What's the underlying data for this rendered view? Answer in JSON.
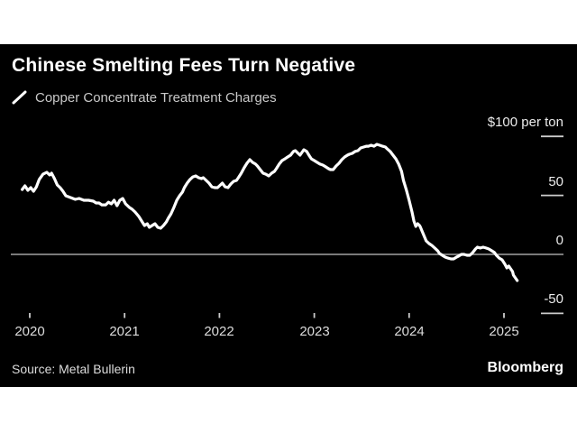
{
  "header": {
    "title": "Chinese Smelting Fees Turn Negative"
  },
  "footer": {
    "source": "Source: Metal Bullerin",
    "brand": "Bloomberg"
  },
  "colors": {
    "background": "#ffffff",
    "panel": "#000000",
    "line": "#ffffff",
    "zero_line": "#a3a3a3",
    "tick": "#cccccc",
    "title_text": "#ffffff",
    "dim_text": "#c9c9c9"
  },
  "chart_data": {
    "type": "line",
    "title": "Chinese Smelting Fees Turn Negative",
    "unit_label": "$100 per ton",
    "source": "Metal Bullerin",
    "legend_position": "top-left",
    "grid": false,
    "zero_line": true,
    "xlim": [
      2019.85,
      2025.63
    ],
    "ylim": [
      -55,
      105
    ],
    "x_ticks": [
      2020,
      2021,
      2022,
      2023,
      2024,
      2025
    ],
    "x_tick_labels": [
      "2020",
      "2021",
      "2022",
      "2023",
      "2024",
      "2025"
    ],
    "y_ticks": [
      100,
      50,
      0,
      -50
    ],
    "y_tick_labels": [
      "$100 per ton",
      "50",
      "0",
      "-50"
    ],
    "series": [
      {
        "name": "Copper Concentrate Treatment Charges",
        "unit": "$ per ton",
        "points": [
          [
            2019.92,
            55.0
          ],
          [
            2019.95,
            58.1
          ],
          [
            2019.98,
            54.3
          ],
          [
            2020.01,
            56.6
          ],
          [
            2020.04,
            53.5
          ],
          [
            2020.07,
            57.3
          ],
          [
            2020.1,
            63.5
          ],
          [
            2020.14,
            68.0
          ],
          [
            2020.18,
            69.6
          ],
          [
            2020.21,
            67.3
          ],
          [
            2020.23,
            68.8
          ],
          [
            2020.26,
            64.2
          ],
          [
            2020.29,
            58.9
          ],
          [
            2020.32,
            56.6
          ],
          [
            2020.35,
            53.5
          ],
          [
            2020.38,
            49.7
          ],
          [
            2020.43,
            48.2
          ],
          [
            2020.48,
            46.6
          ],
          [
            2020.52,
            47.4
          ],
          [
            2020.57,
            45.9
          ],
          [
            2020.62,
            45.9
          ],
          [
            2020.67,
            45.1
          ],
          [
            2020.7,
            43.6
          ],
          [
            2020.73,
            43.6
          ],
          [
            2020.76,
            42.0
          ],
          [
            2020.8,
            42.0
          ],
          [
            2020.83,
            44.3
          ],
          [
            2020.86,
            42.8
          ],
          [
            2020.89,
            45.9
          ],
          [
            2020.92,
            41.3
          ],
          [
            2020.95,
            45.9
          ],
          [
            2020.98,
            47.4
          ],
          [
            2021.01,
            42.8
          ],
          [
            2021.05,
            39.8
          ],
          [
            2021.08,
            38.2
          ],
          [
            2021.11,
            35.9
          ],
          [
            2021.15,
            32.1
          ],
          [
            2021.18,
            28.3
          ],
          [
            2021.21,
            24.5
          ],
          [
            2021.24,
            26.0
          ],
          [
            2021.26,
            22.9
          ],
          [
            2021.29,
            24.5
          ],
          [
            2021.32,
            26.0
          ],
          [
            2021.35,
            22.9
          ],
          [
            2021.38,
            22.2
          ],
          [
            2021.41,
            24.5
          ],
          [
            2021.44,
            27.5
          ],
          [
            2021.46,
            30.6
          ],
          [
            2021.49,
            34.4
          ],
          [
            2021.52,
            39.8
          ],
          [
            2021.55,
            45.9
          ],
          [
            2021.58,
            49.7
          ],
          [
            2021.61,
            52.8
          ],
          [
            2021.63,
            56.6
          ],
          [
            2021.66,
            60.4
          ],
          [
            2021.69,
            63.5
          ],
          [
            2021.72,
            65.7
          ],
          [
            2021.75,
            66.5
          ],
          [
            2021.78,
            65.0
          ],
          [
            2021.81,
            64.2
          ],
          [
            2021.83,
            65.0
          ],
          [
            2021.86,
            62.7
          ],
          [
            2021.89,
            60.4
          ],
          [
            2021.92,
            57.3
          ],
          [
            2021.95,
            56.6
          ],
          [
            2021.98,
            56.6
          ],
          [
            2022.01,
            58.9
          ],
          [
            2022.03,
            60.4
          ],
          [
            2022.06,
            57.3
          ],
          [
            2022.09,
            56.6
          ],
          [
            2022.12,
            59.6
          ],
          [
            2022.15,
            61.9
          ],
          [
            2022.18,
            62.7
          ],
          [
            2022.2,
            65.0
          ],
          [
            2022.23,
            68.8
          ],
          [
            2022.26,
            73.4
          ],
          [
            2022.29,
            77.2
          ],
          [
            2022.32,
            80.3
          ],
          [
            2022.35,
            78.0
          ],
          [
            2022.38,
            76.5
          ],
          [
            2022.4,
            74.9
          ],
          [
            2022.43,
            71.9
          ],
          [
            2022.46,
            68.8
          ],
          [
            2022.49,
            68.0
          ],
          [
            2022.52,
            66.5
          ],
          [
            2022.55,
            68.8
          ],
          [
            2022.58,
            70.3
          ],
          [
            2022.6,
            72.6
          ],
          [
            2022.63,
            76.5
          ],
          [
            2022.66,
            79.5
          ],
          [
            2022.69,
            81.0
          ],
          [
            2022.72,
            82.6
          ],
          [
            2022.75,
            84.1
          ],
          [
            2022.78,
            87.2
          ],
          [
            2022.8,
            87.9
          ],
          [
            2022.83,
            85.6
          ],
          [
            2022.85,
            84.1
          ],
          [
            2022.89,
            88.7
          ],
          [
            2022.92,
            87.2
          ],
          [
            2022.95,
            83.3
          ],
          [
            2022.97,
            81.0
          ],
          [
            2023.0,
            79.5
          ],
          [
            2023.03,
            78.0
          ],
          [
            2023.06,
            76.5
          ],
          [
            2023.09,
            75.7
          ],
          [
            2023.12,
            74.2
          ],
          [
            2023.15,
            72.6
          ],
          [
            2023.17,
            71.9
          ],
          [
            2023.2,
            71.9
          ],
          [
            2023.23,
            74.9
          ],
          [
            2023.26,
            77.2
          ],
          [
            2023.29,
            80.3
          ],
          [
            2023.32,
            82.6
          ],
          [
            2023.35,
            84.1
          ],
          [
            2023.37,
            84.9
          ],
          [
            2023.4,
            85.6
          ],
          [
            2023.43,
            87.2
          ],
          [
            2023.46,
            87.9
          ],
          [
            2023.49,
            90.2
          ],
          [
            2023.52,
            91.0
          ],
          [
            2023.55,
            91.7
          ],
          [
            2023.57,
            91.7
          ],
          [
            2023.6,
            92.5
          ],
          [
            2023.63,
            91.7
          ],
          [
            2023.66,
            93.3
          ],
          [
            2023.69,
            92.5
          ],
          [
            2023.72,
            91.7
          ],
          [
            2023.75,
            91.0
          ],
          [
            2023.77,
            89.4
          ],
          [
            2023.8,
            87.2
          ],
          [
            2023.83,
            84.1
          ],
          [
            2023.86,
            81.0
          ],
          [
            2023.89,
            76.5
          ],
          [
            2023.92,
            70.3
          ],
          [
            2023.94,
            62.7
          ],
          [
            2023.97,
            55.0
          ],
          [
            2024.0,
            45.9
          ],
          [
            2024.03,
            35.9
          ],
          [
            2024.05,
            28.3
          ],
          [
            2024.07,
            23.7
          ],
          [
            2024.09,
            26.0
          ],
          [
            2024.11,
            24.5
          ],
          [
            2024.12,
            22.9
          ],
          [
            2024.14,
            19.1
          ],
          [
            2024.16,
            15.3
          ],
          [
            2024.18,
            11.5
          ],
          [
            2024.21,
            9.2
          ],
          [
            2024.24,
            7.6
          ],
          [
            2024.27,
            5.4
          ],
          [
            2024.3,
            3.1
          ],
          [
            2024.32,
            0.8
          ],
          [
            2024.35,
            -0.8
          ],
          [
            2024.38,
            -2.3
          ],
          [
            2024.41,
            -3.1
          ],
          [
            2024.44,
            -3.8
          ],
          [
            2024.47,
            -3.8
          ],
          [
            2024.5,
            -2.3
          ],
          [
            2024.52,
            -1.5
          ],
          [
            2024.55,
            0.0
          ],
          [
            2024.58,
            0.0
          ],
          [
            2024.61,
            -0.8
          ],
          [
            2024.64,
            -0.8
          ],
          [
            2024.67,
            1.5
          ],
          [
            2024.7,
            4.6
          ],
          [
            2024.72,
            6.1
          ],
          [
            2024.75,
            5.4
          ],
          [
            2024.78,
            6.1
          ],
          [
            2024.81,
            5.4
          ],
          [
            2024.84,
            4.6
          ],
          [
            2024.87,
            3.1
          ],
          [
            2024.9,
            1.5
          ],
          [
            2024.92,
            -0.8
          ],
          [
            2024.95,
            -3.1
          ],
          [
            2024.98,
            -4.6
          ],
          [
            2025.01,
            -8.4
          ],
          [
            2025.03,
            -11.5
          ],
          [
            2025.05,
            -9.9
          ],
          [
            2025.07,
            -12.2
          ],
          [
            2025.09,
            -14.5
          ],
          [
            2025.1,
            -17.6
          ],
          [
            2025.12,
            -19.9
          ],
          [
            2025.14,
            -22.2
          ]
        ]
      }
    ]
  }
}
